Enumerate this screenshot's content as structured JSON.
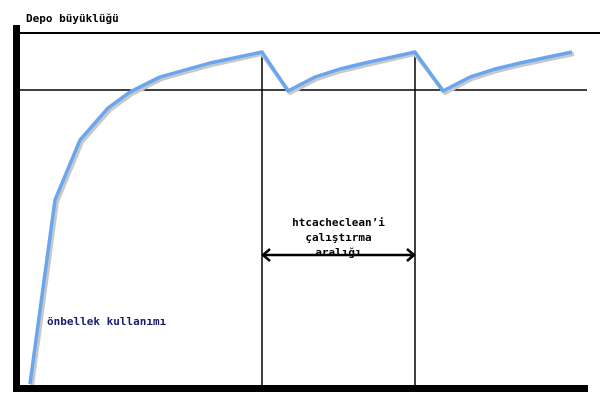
{
  "y_axis_label": "Depo büyüklüğü",
  "curve_label": "önbellek kullanımı",
  "interval_label": [
    "htcacheclean’i",
    "çalıştırma",
    "aralığı"
  ],
  "colors": {
    "curve": "#6aa6f0",
    "axes": "#000000",
    "usage_label": "#1a1a6e"
  }
}
